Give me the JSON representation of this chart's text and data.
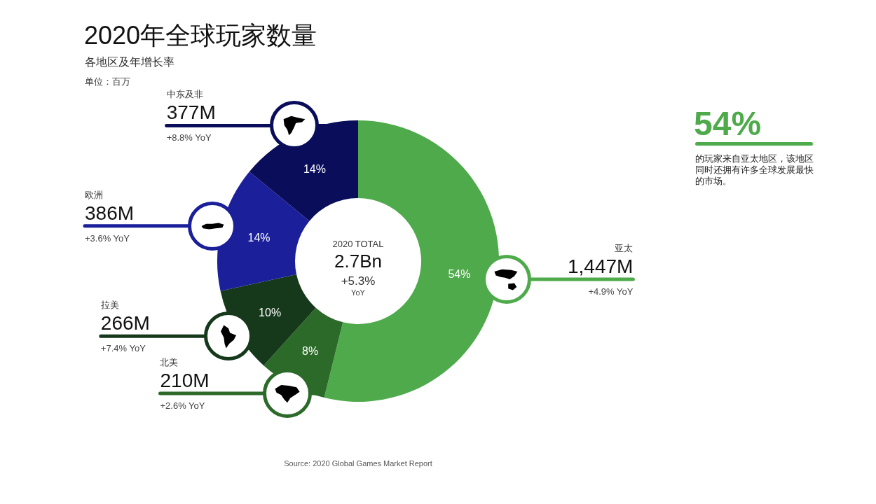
{
  "chart_data": {
    "type": "donut",
    "title": "2020年全球玩家数量",
    "subtitle": "各地区及年增长率",
    "categories": [
      "亚太",
      "北美",
      "拉美",
      "欧洲",
      "中东及非"
    ],
    "values": [
      1447,
      210,
      266,
      386,
      377
    ],
    "colors": [
      "#4eaa4b",
      "#2c6a29",
      "#15391a",
      "#1b1f9a",
      "#0a0d5a"
    ],
    "value_labels": [
      "1,447M",
      "210M",
      "266M",
      "386M",
      "377M"
    ],
    "legend": false,
    "annotations": [
      "单位：百万",
      "2020 TOTAL",
      "2.7Bn",
      "+5.3%",
      "YoY",
      "54%",
      "的玩家来自亚太地区，该地区同时还拥有许多全球发展最快的市场。",
      "Source: 2020 Global Games Market Report",
      {
        "text": "54%",
        "x": "亚太"
      },
      {
        "text": "+4.9% YoY",
        "x": "亚太"
      },
      {
        "text": "8%",
        "x": "北美"
      },
      {
        "text": "+2.6% YoY",
        "x": "北美"
      },
      {
        "text": "10%",
        "x": "拉美"
      },
      {
        "text": "+7.4% YoY",
        "x": "拉美"
      },
      {
        "text": "14%",
        "x": "欧洲"
      },
      {
        "text": "+3.6% YoY",
        "x": "欧洲"
      },
      {
        "text": "14%",
        "x": "中东及非"
      },
      {
        "text": "+8.8% YoY",
        "x": "中东及非"
      }
    ]
  }
}
